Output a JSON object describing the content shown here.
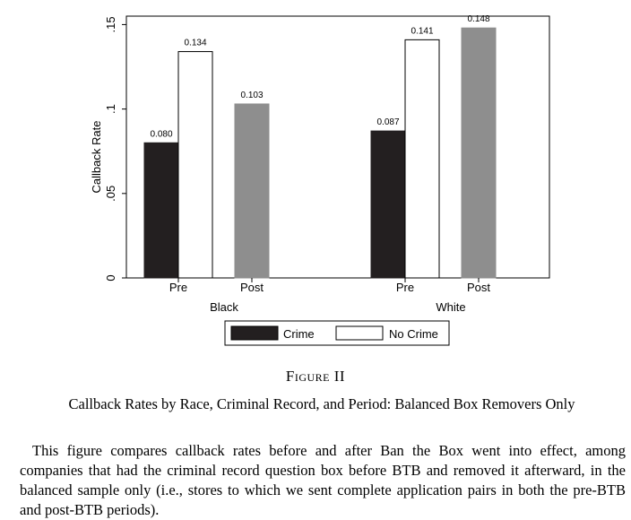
{
  "chart_data": {
    "type": "bar",
    "ylabel": "Callback Rate",
    "ylim": [
      0,
      0.155
    ],
    "yticks": [
      {
        "value": 0,
        "label": "0"
      },
      {
        "value": 0.05,
        "label": ".05"
      },
      {
        "value": 0.1,
        "label": ".1"
      },
      {
        "value": 0.15,
        "label": ".15"
      }
    ],
    "groups": [
      {
        "label": "Black",
        "periods": [
          {
            "label": "Pre",
            "bars": [
              {
                "series": "Crime",
                "value": 0.08,
                "label": "0.080"
              },
              {
                "series": "No Crime",
                "value": 0.134,
                "label": "0.134"
              }
            ]
          },
          {
            "label": "Post",
            "bars": [
              {
                "series": "Pooled",
                "value": 0.103,
                "label": "0.103"
              }
            ]
          }
        ]
      },
      {
        "label": "White",
        "periods": [
          {
            "label": "Pre",
            "bars": [
              {
                "series": "Crime",
                "value": 0.087,
                "label": "0.087"
              },
              {
                "series": "No Crime",
                "value": 0.141,
                "label": "0.141"
              }
            ]
          },
          {
            "label": "Post",
            "bars": [
              {
                "series": "Pooled",
                "value": 0.148,
                "label": "0.148"
              }
            ]
          }
        ]
      }
    ],
    "legend": [
      {
        "label": "Crime",
        "color": "#231f20"
      },
      {
        "label": "No Crime",
        "color": "#ffffff"
      }
    ],
    "colors": {
      "Crime": "#231f20",
      "No Crime": "#ffffff",
      "Pooled": "#8e8e8e"
    },
    "grid": false,
    "legend_position": "bottom"
  },
  "figure": {
    "title": "Figure II",
    "caption": "Callback Rates by Race, Criminal Record, and Period: Balanced Box Removers Only",
    "note": "This figure compares callback rates before and after Ban the Box went into effect, among companies that had the criminal record question box before BTB and removed it afterward, in the balanced sample only (i.e., stores to which we sent complete application pairs in both the pre-BTB and post-BTB periods)."
  }
}
